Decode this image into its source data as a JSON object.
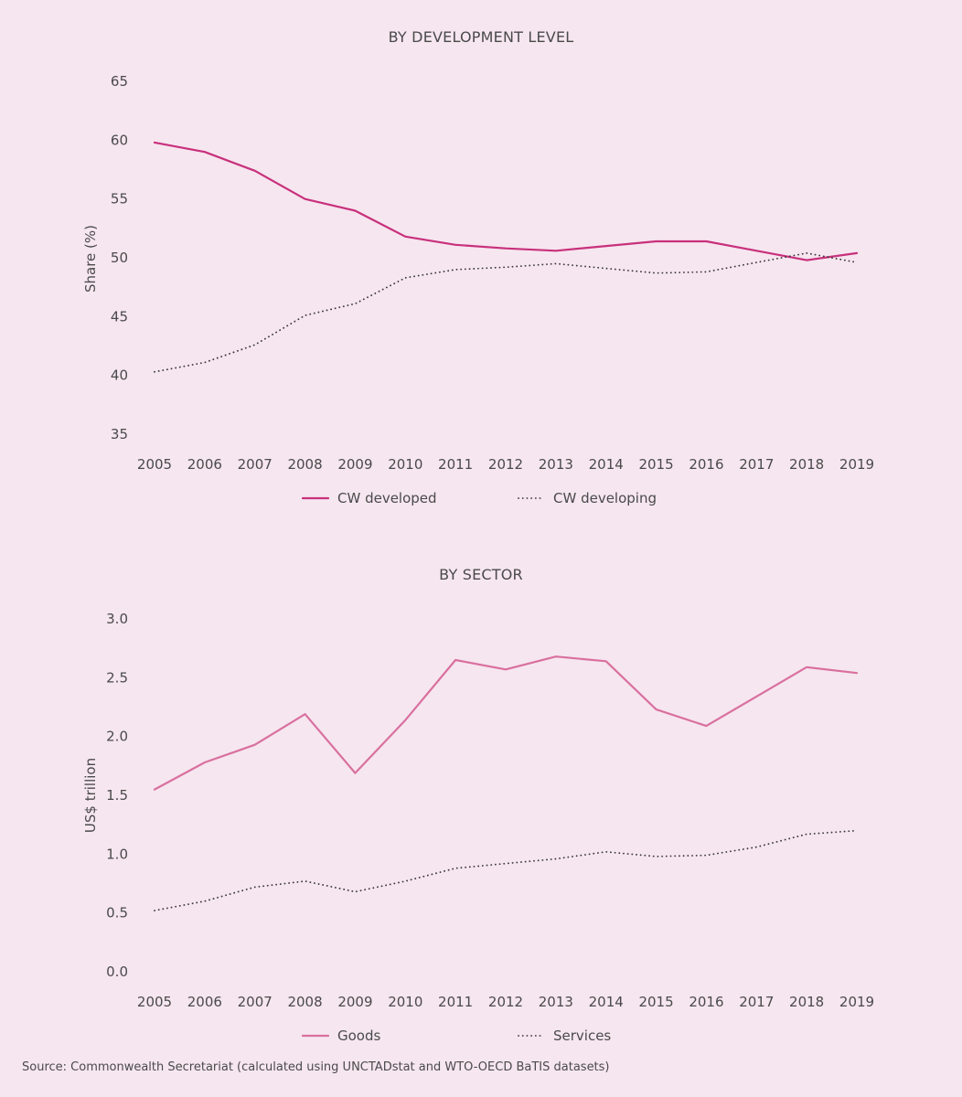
{
  "chart_data": [
    {
      "type": "line",
      "title": "BY DEVELOPMENT LEVEL",
      "xlabel": "",
      "ylabel": "Share (%)",
      "ylim": [
        35,
        65
      ],
      "yticks": [
        35,
        40,
        45,
        50,
        55,
        60,
        65
      ],
      "x": [
        "2005",
        "2006",
        "2007",
        "2008",
        "2009",
        "2010",
        "2011",
        "2012",
        "2013",
        "2014",
        "2015",
        "2016",
        "2017",
        "2018",
        "2019"
      ],
      "grid": false,
      "legend_position": "bottom",
      "series": [
        {
          "name": "CW developed",
          "style": "solid",
          "color": "#c8307c",
          "values": [
            59.8,
            59.0,
            57.4,
            55.0,
            54.0,
            51.8,
            51.1,
            50.8,
            50.6,
            51.0,
            51.4,
            51.4,
            50.6,
            49.8,
            50.4
          ]
        },
        {
          "name": "CW developing",
          "style": "dotted",
          "color": "#3a3a3a",
          "values": [
            40.3,
            41.1,
            42.6,
            45.1,
            46.1,
            48.3,
            49.0,
            49.2,
            49.5,
            49.1,
            48.7,
            48.8,
            49.6,
            50.4,
            49.6
          ]
        }
      ]
    },
    {
      "type": "line",
      "title": "BY SECTOR",
      "xlabel": "",
      "ylabel": "US$ trillion",
      "ylim": [
        0.0,
        3.0
      ],
      "yticks": [
        "0.0",
        "0.5",
        "1.0",
        "1.5",
        "2.0",
        "2.5",
        "3.0"
      ],
      "x": [
        "2005",
        "2006",
        "2007",
        "2008",
        "2009",
        "2010",
        "2011",
        "2012",
        "2013",
        "2014",
        "2015",
        "2016",
        "2017",
        "2018",
        "2019"
      ],
      "grid": false,
      "legend_position": "bottom",
      "series": [
        {
          "name": "Goods",
          "style": "solid",
          "color": "#d9709f",
          "values": [
            1.55,
            1.78,
            1.93,
            2.19,
            1.69,
            2.14,
            2.65,
            2.57,
            2.68,
            2.64,
            2.23,
            2.09,
            2.34,
            2.59,
            2.54
          ]
        },
        {
          "name": "Services",
          "style": "dotted",
          "color": "#3a3a3a",
          "values": [
            0.52,
            0.6,
            0.72,
            0.77,
            0.68,
            0.77,
            0.88,
            0.92,
            0.96,
            1.02,
            0.98,
            0.99,
            1.06,
            1.17,
            1.2
          ]
        }
      ]
    }
  ],
  "source": "Source: Commonwealth Secretariat (calculated using UNCTADstat and WTO-OECD BaTIS datasets)"
}
